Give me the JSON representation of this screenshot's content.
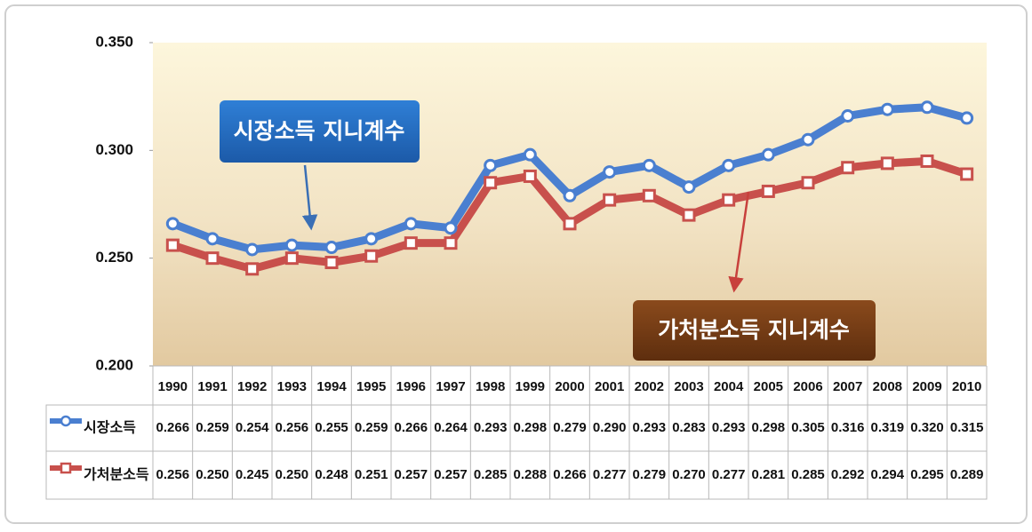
{
  "chart_data": {
    "type": "line",
    "categories": [
      "1990",
      "1991",
      "1992",
      "1993",
      "1994",
      "1995",
      "1996",
      "1997",
      "1998",
      "1999",
      "2000",
      "2001",
      "2002",
      "2003",
      "2004",
      "2005",
      "2006",
      "2007",
      "2008",
      "2009",
      "2010"
    ],
    "series": [
      {
        "name": "시장소득",
        "color": "#4a7fd0",
        "values": [
          0.266,
          0.259,
          0.254,
          0.256,
          0.255,
          0.259,
          0.266,
          0.264,
          0.293,
          0.298,
          0.279,
          0.29,
          0.293,
          0.283,
          0.293,
          0.298,
          0.305,
          0.316,
          0.319,
          0.32,
          0.315
        ],
        "value_labels": [
          "0.266",
          "0.259",
          "0.254",
          "0.256",
          "0.255",
          "0.259",
          "0.266",
          "0.264",
          "0.293",
          "0.298",
          "0.279",
          "0.290",
          "0.293",
          "0.283",
          "0.293",
          "0.298",
          "0.305",
          "0.316",
          "0.319",
          "0.320",
          "0.315"
        ]
      },
      {
        "name": "가처분소득",
        "color": "#c8504c",
        "values": [
          0.256,
          0.25,
          0.245,
          0.25,
          0.248,
          0.251,
          0.257,
          0.257,
          0.285,
          0.288,
          0.266,
          0.277,
          0.279,
          0.27,
          0.277,
          0.281,
          0.285,
          0.292,
          0.294,
          0.295,
          0.289
        ],
        "value_labels": [
          "0.256",
          "0.250",
          "0.245",
          "0.250",
          "0.248",
          "0.251",
          "0.257",
          "0.257",
          "0.285",
          "0.288",
          "0.266",
          "0.277",
          "0.279",
          "0.270",
          "0.277",
          "0.281",
          "0.285",
          "0.292",
          "0.294",
          "0.295",
          "0.289"
        ]
      }
    ],
    "ylim": [
      0.2,
      0.35
    ],
    "yticks": [
      {
        "value": 0.2,
        "label": "0.200"
      },
      {
        "value": 0.25,
        "label": "0.250"
      },
      {
        "value": 0.3,
        "label": "0.300"
      },
      {
        "value": 0.35,
        "label": "0.350"
      }
    ],
    "grid": false,
    "annotations": [
      "시장소득 지니계수",
      "가처분소득 지니계수"
    ]
  }
}
